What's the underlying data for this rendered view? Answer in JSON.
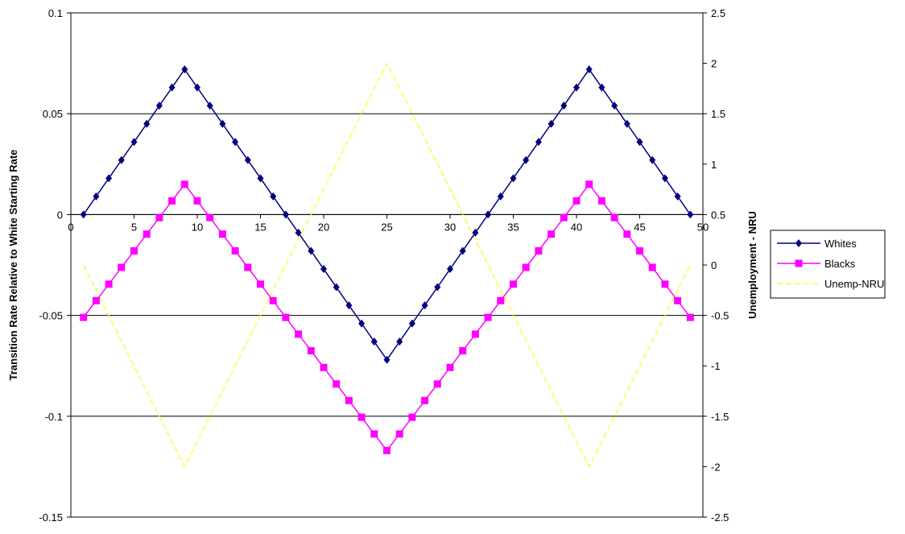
{
  "chart_data": {
    "type": "line",
    "title": "",
    "xlabel": "",
    "ylabel": "Transition Rate Relative to White Starting Rate",
    "ylabel_right": "Unemployment - NRU",
    "xlim": [
      0,
      50
    ],
    "ylim": [
      -0.15,
      0.1
    ],
    "ylim_right": [
      -2.5,
      2.5
    ],
    "x_ticks": [
      "0",
      "5",
      "10",
      "15",
      "20",
      "25",
      "30",
      "35",
      "40",
      "45",
      "50"
    ],
    "y_ticks": [
      "-0.15",
      "-0.1",
      "-0.05",
      "0",
      "0.05",
      "0.1"
    ],
    "y_ticks_right": [
      "-2.5",
      "-2",
      "-1.5",
      "-1",
      "-0.5",
      "0",
      "0.5",
      "1",
      "1.5",
      "2",
      "2.5"
    ],
    "grid": "horizontal",
    "legend_position": "right",
    "x": [
      1,
      2,
      3,
      4,
      5,
      6,
      7,
      8,
      9,
      10,
      11,
      12,
      13,
      14,
      15,
      16,
      17,
      18,
      19,
      20,
      21,
      22,
      23,
      24,
      25,
      26,
      27,
      28,
      29,
      30,
      31,
      32,
      33,
      34,
      35,
      36,
      37,
      38,
      39,
      40,
      41,
      42,
      43,
      44,
      45,
      46,
      47,
      48,
      49
    ],
    "series": [
      {
        "name": "Whites",
        "axis": "left",
        "color": "#000080",
        "marker": "diamond",
        "line_style": "solid",
        "values": [
          0,
          0.009,
          0.018,
          0.027,
          0.036,
          0.045,
          0.054,
          0.063,
          0.072,
          0.063,
          0.054,
          0.045,
          0.036,
          0.027,
          0.018,
          0.009,
          0,
          -0.009,
          -0.018,
          -0.027,
          -0.036,
          -0.045,
          -0.054,
          -0.063,
          -0.072,
          -0.063,
          -0.054,
          -0.045,
          -0.036,
          -0.027,
          -0.018,
          -0.009,
          0,
          0.009,
          0.018,
          0.027,
          0.036,
          0.045,
          0.054,
          0.063,
          0.072,
          0.063,
          0.054,
          0.045,
          0.036,
          0.027,
          0.018,
          0.009,
          0
        ]
      },
      {
        "name": "Blacks",
        "axis": "left",
        "color": "#ff00ff",
        "marker": "square",
        "line_style": "solid",
        "values": [
          -0.051,
          -0.0427,
          -0.0345,
          -0.0262,
          -0.018,
          -0.0097,
          -0.0015,
          0.0068,
          0.015,
          0.0068,
          -0.0015,
          -0.0097,
          -0.018,
          -0.0262,
          -0.0345,
          -0.0427,
          -0.051,
          -0.0593,
          -0.0675,
          -0.0758,
          -0.084,
          -0.0922,
          -0.1005,
          -0.1088,
          -0.117,
          -0.1088,
          -0.1005,
          -0.0922,
          -0.084,
          -0.0758,
          -0.0675,
          -0.0593,
          -0.051,
          -0.0427,
          -0.0345,
          -0.0262,
          -0.018,
          -0.0097,
          -0.0015,
          0.0068,
          0.015,
          0.0068,
          -0.0015,
          -0.0097,
          -0.018,
          -0.0262,
          -0.0345,
          -0.0427,
          -0.051
        ]
      },
      {
        "name": "Unemp-NRU",
        "axis": "right",
        "color": "#ffff00",
        "marker": "none",
        "line_style": "dashed",
        "x": [
          1,
          9,
          25,
          41,
          49
        ],
        "values": [
          0,
          -2,
          2,
          -2,
          0
        ]
      }
    ]
  }
}
